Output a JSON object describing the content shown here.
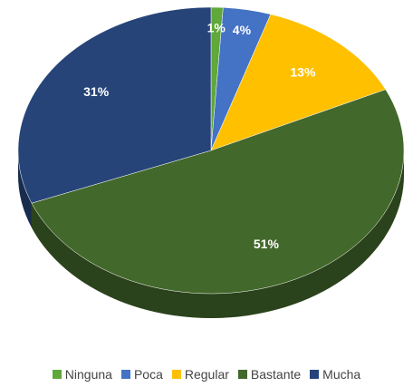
{
  "chart_data": {
    "type": "pie",
    "categories": [
      "Ninguna",
      "Poca",
      "Regular",
      "Bastante",
      "Mucha"
    ],
    "values": [
      1,
      4,
      13,
      51,
      31
    ],
    "value_labels": [
      "1%",
      "4%",
      "13%",
      "51%",
      "31%"
    ],
    "colors": [
      "#5fa83a",
      "#4472c4",
      "#ffc000",
      "#43682b",
      "#264478"
    ],
    "legend": "bottom"
  }
}
